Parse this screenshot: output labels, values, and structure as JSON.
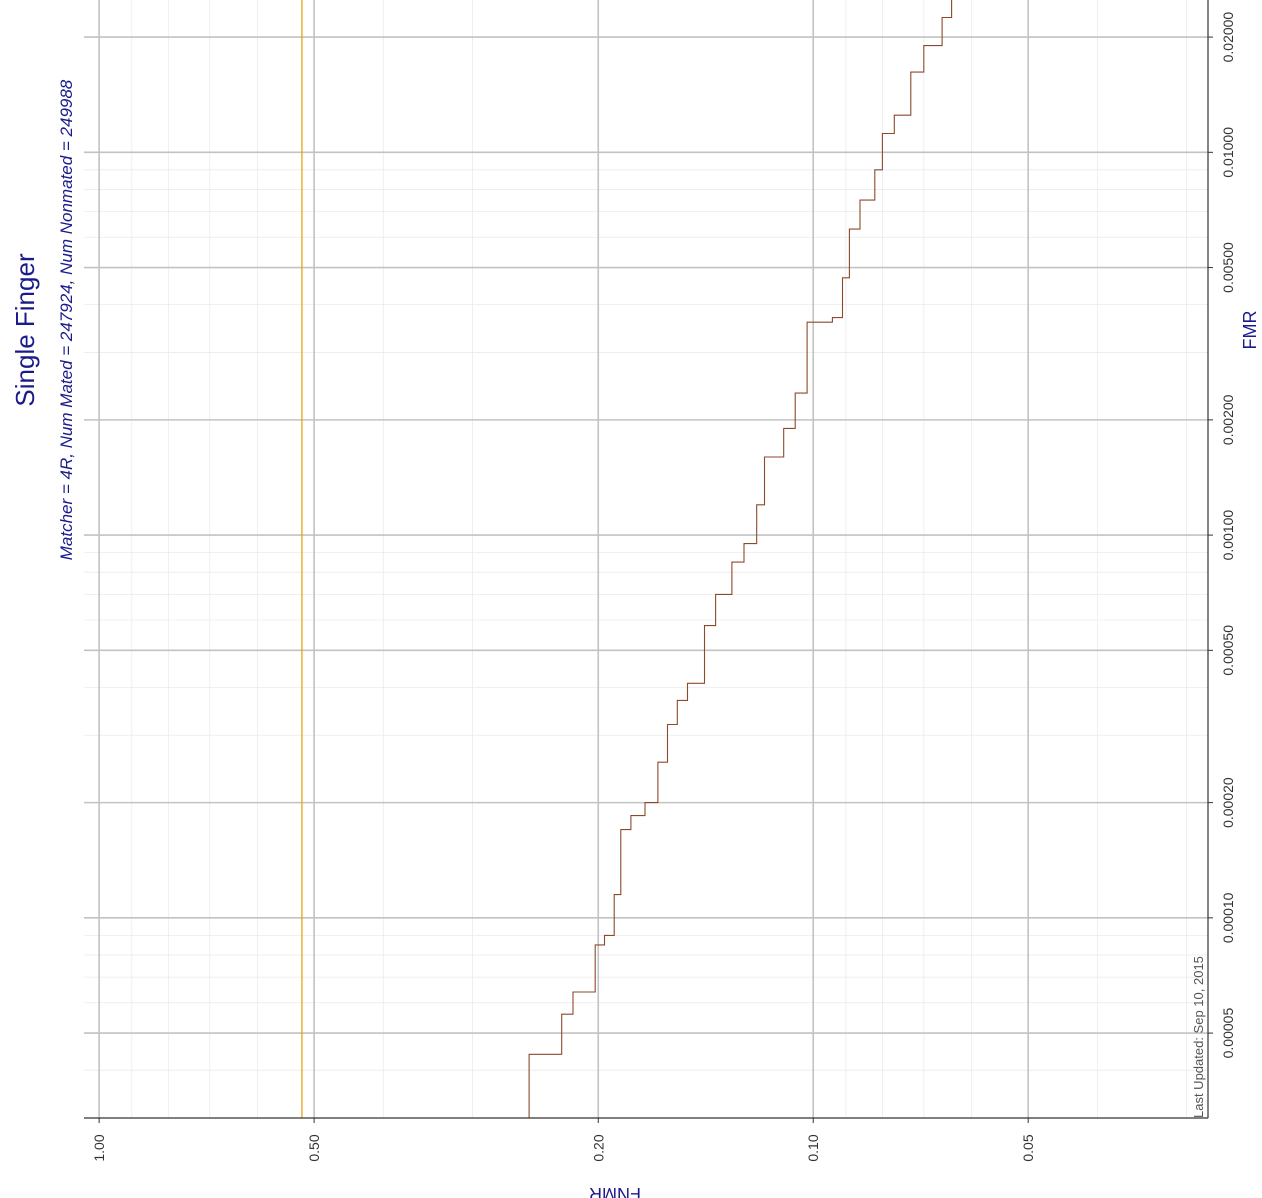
{
  "chart_data": {
    "type": "line",
    "title": "Single Finger",
    "subtitle": "Matcher = 4R,   Num Mated = 247924,   Num Nonmated = 249988",
    "xlabel": "FMR",
    "ylabel": "FNMR",
    "x_scale": "log10",
    "y_scale": "log10",
    "x_ticks": [
      "0.00005",
      "0.00010",
      "0.00020",
      "0.00050",
      "0.00100",
      "0.00200",
      "0.00500",
      "0.01000",
      "0.02000"
    ],
    "y_ticks": [
      "1.00",
      "0.50",
      "0.20",
      "0.10",
      "0.05"
    ],
    "xlim": [
      3e-05,
      0.025
    ],
    "ylim": [
      1.05,
      0.028
    ],
    "reference_line": {
      "fnmr": 0.52,
      "color": "#e8a317"
    },
    "series": [
      {
        "color": "#8b4a2b",
        "points": [
          [
            3e-05,
            0.25
          ],
          [
            4.4e-05,
            0.25
          ],
          [
            4.4e-05,
            0.225
          ],
          [
            5.6e-05,
            0.225
          ],
          [
            5.6e-05,
            0.217
          ],
          [
            6.4e-05,
            0.217
          ],
          [
            6.4e-05,
            0.202
          ],
          [
            8.5e-05,
            0.202
          ],
          [
            8.5e-05,
            0.196
          ],
          [
            9e-05,
            0.196
          ],
          [
            9e-05,
            0.19
          ],
          [
            0.000115,
            0.19
          ],
          [
            0.000115,
            0.186
          ],
          [
            0.00017,
            0.186
          ],
          [
            0.00017,
            0.18
          ],
          [
            0.000185,
            0.18
          ],
          [
            0.000185,
            0.172
          ],
          [
            0.0002,
            0.172
          ],
          [
            0.0002,
            0.165
          ],
          [
            0.000255,
            0.165
          ],
          [
            0.000255,
            0.16
          ],
          [
            0.00032,
            0.16
          ],
          [
            0.00032,
            0.155
          ],
          [
            0.00037,
            0.155
          ],
          [
            0.00037,
            0.15
          ],
          [
            0.00041,
            0.15
          ],
          [
            0.00041,
            0.142
          ],
          [
            0.00058,
            0.142
          ],
          [
            0.00058,
            0.137
          ],
          [
            0.0007,
            0.137
          ],
          [
            0.0007,
            0.13
          ],
          [
            0.00085,
            0.13
          ],
          [
            0.00085,
            0.125
          ],
          [
            0.00095,
            0.125
          ],
          [
            0.00095,
            0.12
          ],
          [
            0.0012,
            0.12
          ],
          [
            0.0012,
            0.117
          ],
          [
            0.0016,
            0.117
          ],
          [
            0.0016,
            0.11
          ],
          [
            0.0019,
            0.11
          ],
          [
            0.0019,
            0.106
          ],
          [
            0.00235,
            0.106
          ],
          [
            0.00235,
            0.102
          ],
          [
            0.0036,
            0.102
          ],
          [
            0.0036,
            0.094
          ],
          [
            0.0037,
            0.094
          ],
          [
            0.0037,
            0.091
          ],
          [
            0.0047,
            0.091
          ],
          [
            0.0047,
            0.089
          ],
          [
            0.0063,
            0.089
          ],
          [
            0.0063,
            0.086
          ],
          [
            0.0075,
            0.086
          ],
          [
            0.0075,
            0.082
          ],
          [
            0.009,
            0.082
          ],
          [
            0.009,
            0.08
          ],
          [
            0.0112,
            0.08
          ],
          [
            0.0112,
            0.077
          ],
          [
            0.0125,
            0.077
          ],
          [
            0.0125,
            0.073
          ],
          [
            0.0162,
            0.073
          ],
          [
            0.0162,
            0.07
          ],
          [
            0.019,
            0.07
          ],
          [
            0.019,
            0.066
          ],
          [
            0.0225,
            0.066
          ],
          [
            0.0225,
            0.064
          ],
          [
            0.025,
            0.064
          ]
        ]
      }
    ],
    "grid": true,
    "annotation": "Last Updated: Sep 10, 2015"
  }
}
